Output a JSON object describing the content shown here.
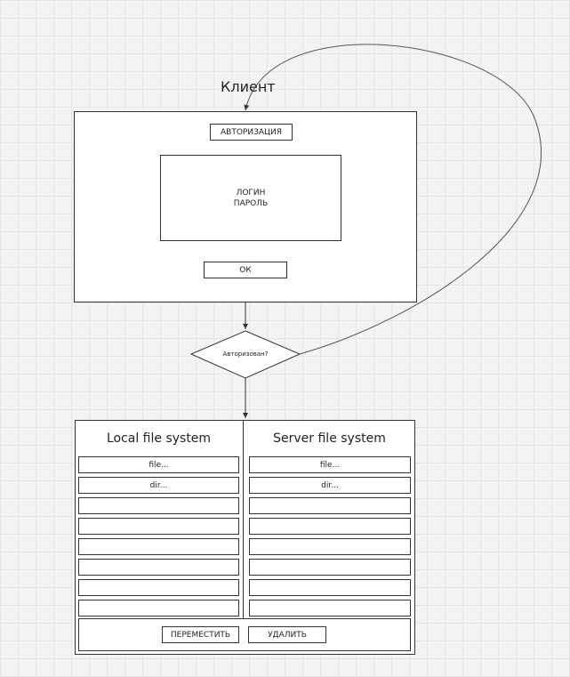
{
  "client": {
    "title": "Клиент",
    "auth_label": "АВТОРИЗАЦИЯ",
    "login_label": "ЛОГИН",
    "password_label": "ПАРОЛЬ",
    "ok_label": "ОК"
  },
  "decision": {
    "label": "Авторизован?"
  },
  "file_manager": {
    "local_title": "Local file system",
    "server_title": "Server file system",
    "local_rows": [
      "file...",
      "dir...",
      "",
      "",
      "",
      "",
      "",
      ""
    ],
    "server_rows": [
      "file...",
      "dir...",
      "",
      "",
      "",
      "",
      "",
      ""
    ],
    "move_label": "ПЕРЕМЕСТИТЬ",
    "delete_label": "УДАЛИТЬ"
  }
}
